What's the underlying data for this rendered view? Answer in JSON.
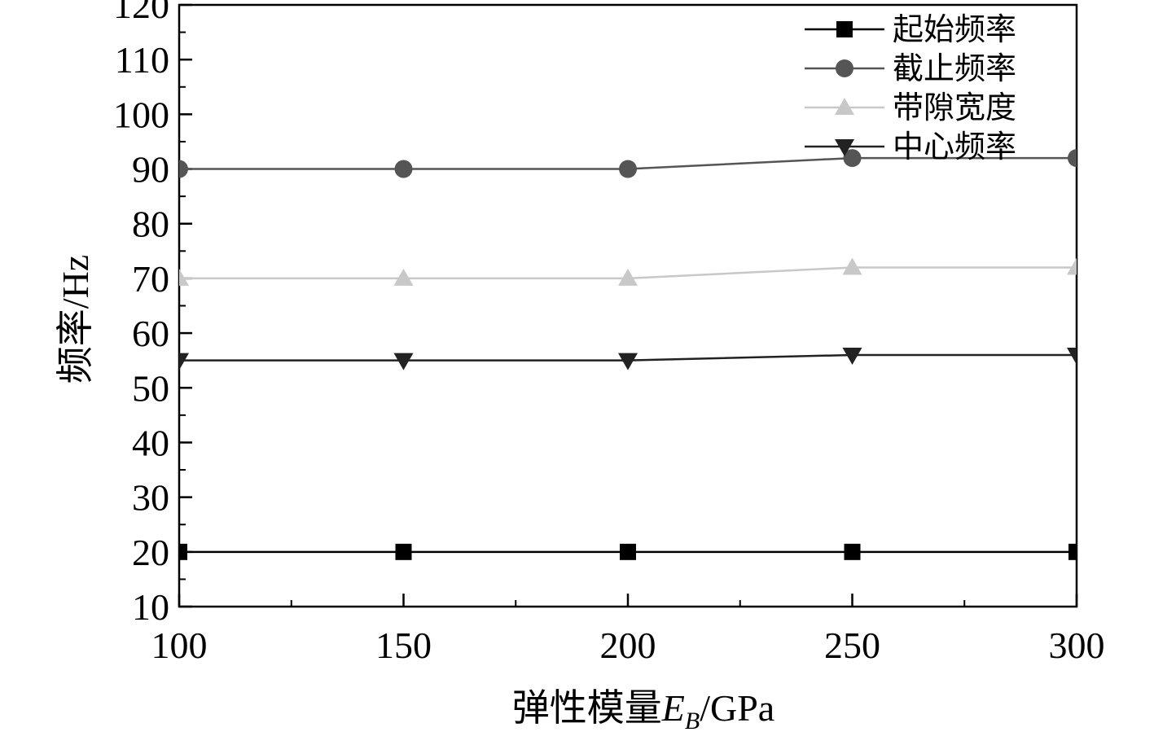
{
  "chart_data": {
    "type": "line",
    "title": "",
    "xlabel": "弹性模量",
    "xlabel_symbol": "E",
    "xlabel_subscript": "B",
    "xlabel_unit": "/GPa",
    "ylabel": "频率/Hz",
    "x": [
      100,
      150,
      200,
      250,
      300
    ],
    "xlim": [
      100,
      300
    ],
    "ylim": [
      10,
      120
    ],
    "x_ticks": [
      100,
      150,
      200,
      250,
      300
    ],
    "y_ticks": [
      10,
      20,
      30,
      40,
      50,
      60,
      70,
      80,
      90,
      100,
      110,
      120
    ],
    "grid": false,
    "legend_position": "top-right",
    "series": [
      {
        "name": "起始频率",
        "values": [
          20,
          20,
          20,
          20,
          20
        ],
        "color": "#000000",
        "marker": "square"
      },
      {
        "name": "截止频率",
        "values": [
          90,
          90,
          90,
          92,
          92
        ],
        "color": "#555555",
        "marker": "circle"
      },
      {
        "name": "带隙宽度",
        "values": [
          70,
          70,
          70,
          72,
          72
        ],
        "color": "#c8c8c8",
        "marker": "triangle-up"
      },
      {
        "name": "中心频率",
        "values": [
          55,
          55,
          55,
          56,
          56
        ],
        "color": "#222222",
        "marker": "triangle-down"
      }
    ]
  }
}
